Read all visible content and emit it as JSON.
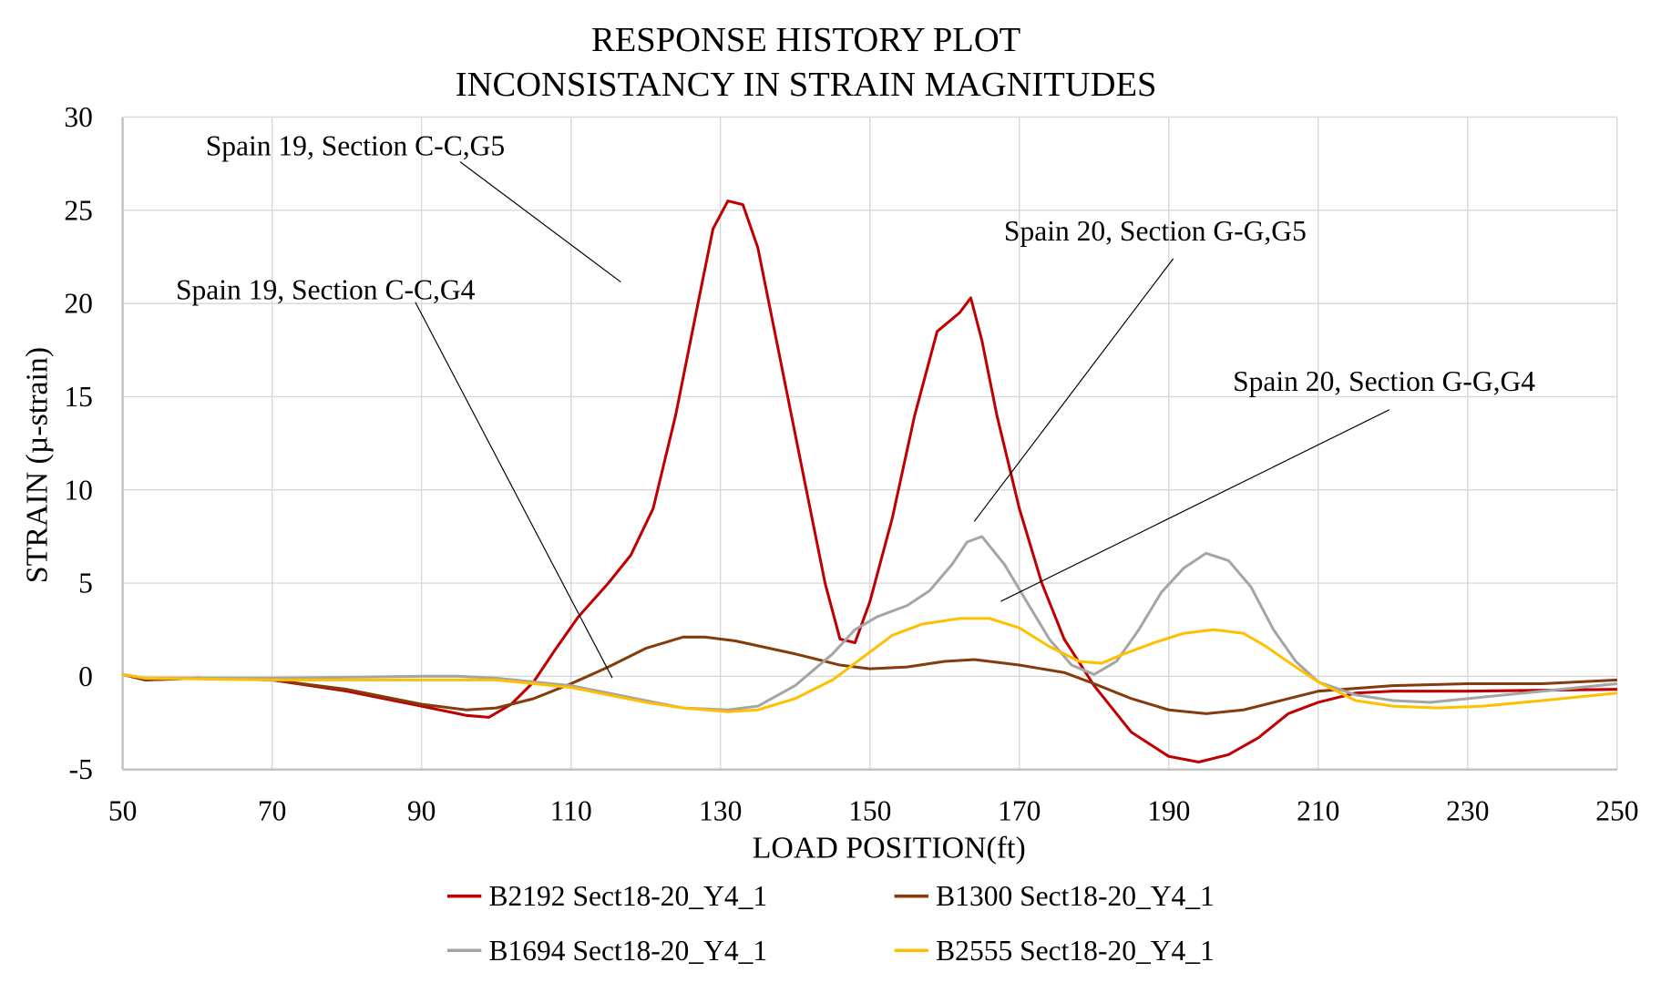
{
  "chart_data": {
    "type": "line",
    "title": [
      "RESPONSE HISTORY PLOT",
      "INCONSISTANCY IN STRAIN MAGNITUDES"
    ],
    "xlabel": "LOAD POSITION(ft)",
    "ylabel": "STRAIN (µ-strain)",
    "xlim": [
      50,
      250
    ],
    "ylim": [
      -5,
      30
    ],
    "xticks": [
      "50",
      "70",
      "90",
      "110",
      "130",
      "150",
      "170",
      "190",
      "210",
      "230",
      "250"
    ],
    "yticks": [
      "-5",
      "0",
      "5",
      "10",
      "15",
      "20",
      "25",
      "30"
    ],
    "grid": true,
    "legend_position": "bottom",
    "annotations": [
      "Spain 19, Section C-C,G5",
      "Spain 19, Section C-C,G4",
      "Spain 20, Section G-G,G5",
      "Spain 20, Section G-G,G4"
    ],
    "series": [
      {
        "name": "B2192 Sect18-20_Y4_1",
        "color": "#c00000",
        "x": [
          50,
          53,
          60,
          70,
          80,
          90,
          96,
          99,
          102,
          105,
          108,
          111,
          115,
          118,
          121,
          124,
          127,
          129,
          131,
          133,
          135,
          138,
          141,
          144,
          146,
          148,
          150,
          153,
          156,
          159,
          162,
          163.5,
          165,
          167,
          170,
          173,
          176,
          180,
          185,
          190,
          194,
          198,
          202,
          206,
          210,
          215,
          220,
          230,
          250
        ],
        "y": [
          0.1,
          -0.2,
          -0.1,
          -0.2,
          -0.8,
          -1.6,
          -2.1,
          -2.2,
          -1.5,
          -0.3,
          1.5,
          3.2,
          5,
          6.5,
          9,
          14,
          20,
          24,
          25.5,
          25.3,
          23,
          17,
          11,
          5,
          2,
          1.8,
          4,
          8.5,
          14,
          18.5,
          19.5,
          20.3,
          18,
          14,
          9,
          5,
          2,
          -0.5,
          -3,
          -4.3,
          -4.6,
          -4.2,
          -3.3,
          -2,
          -1.4,
          -0.9,
          -0.8,
          -0.8,
          -0.7
        ]
      },
      {
        "name": "B1300 Sect18-20_Y4_1",
        "color": "#843c0c",
        "x": [
          50,
          53,
          60,
          70,
          80,
          90,
          96,
          100,
          105,
          110,
          115,
          120,
          125,
          128,
          132,
          140,
          146,
          150,
          155,
          160,
          164,
          170,
          176,
          180,
          185,
          190,
          195,
          200,
          205,
          210,
          220,
          230,
          240,
          250
        ],
        "y": [
          0.1,
          -0.2,
          -0.1,
          -0.2,
          -0.7,
          -1.5,
          -1.8,
          -1.7,
          -1.2,
          -0.4,
          0.5,
          1.5,
          2.1,
          2.1,
          1.9,
          1.2,
          0.6,
          0.4,
          0.5,
          0.8,
          0.9,
          0.6,
          0.2,
          -0.4,
          -1.2,
          -1.8,
          -2.0,
          -1.8,
          -1.3,
          -0.8,
          -0.5,
          -0.4,
          -0.4,
          -0.2
        ]
      },
      {
        "name": "B1694 Sect18-20_Y4_1",
        "color": "#a5a5a5",
        "x": [
          50,
          53,
          70,
          90,
          95,
          100,
          105,
          110,
          115,
          120,
          125,
          131,
          135,
          140,
          145,
          148,
          151,
          155,
          158,
          161,
          163,
          165,
          168,
          171,
          174,
          177,
          180,
          183,
          186,
          189,
          192,
          195,
          198,
          201,
          204,
          207,
          210,
          215,
          220,
          225,
          230,
          240,
          250
        ],
        "y": [
          0.1,
          -0.1,
          -0.1,
          0,
          0,
          -0.1,
          -0.3,
          -0.5,
          -0.9,
          -1.3,
          -1.7,
          -1.8,
          -1.6,
          -0.5,
          1.2,
          2.5,
          3.2,
          3.8,
          4.6,
          6,
          7.2,
          7.5,
          6,
          4,
          2,
          0.6,
          0.1,
          0.8,
          2.5,
          4.5,
          5.8,
          6.6,
          6.2,
          4.8,
          2.5,
          0.8,
          -0.3,
          -1,
          -1.3,
          -1.4,
          -1.2,
          -0.8,
          -0.4
        ]
      },
      {
        "name": "B2555 Sect18-20_Y4_1",
        "color": "#ffc000",
        "x": [
          50,
          53,
          70,
          80,
          90,
          100,
          110,
          115,
          120,
          125,
          131,
          135,
          140,
          145,
          150,
          153,
          157,
          162,
          166,
          170,
          174,
          178,
          181,
          184,
          188,
          192,
          196,
          200,
          203,
          207,
          210,
          215,
          220,
          226,
          232,
          240,
          250
        ],
        "y": [
          0.1,
          -0.1,
          -0.2,
          -0.2,
          -0.2,
          -0.2,
          -0.6,
          -1.0,
          -1.4,
          -1.7,
          -1.9,
          -1.8,
          -1.2,
          -0.2,
          1.3,
          2.2,
          2.8,
          3.1,
          3.1,
          2.6,
          1.6,
          0.8,
          0.7,
          1.2,
          1.8,
          2.3,
          2.5,
          2.3,
          1.6,
          0.5,
          -0.3,
          -1.3,
          -1.6,
          -1.7,
          -1.6,
          -1.3,
          -0.9
        ]
      }
    ]
  }
}
